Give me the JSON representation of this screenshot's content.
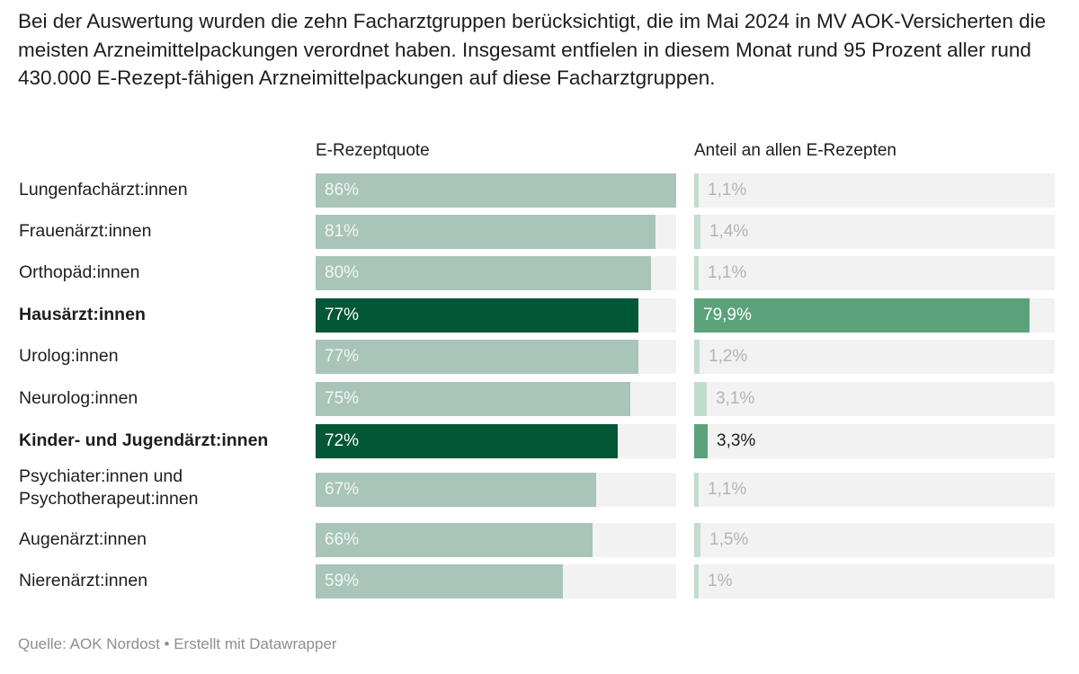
{
  "intro": "Bei der Auswertung wurden die zehn Facharztgruppen berücksichtigt, die im Mai 2024 in MV AOK-Versicherten die meisten Arzneimittelpackungen verordnet haben. Insgesamt entfielen in diesem Monat rund 95 Prozent aller rund 430.000 E-Rezept-fähigen Arzneimittelpackungen auf diese Facharztgruppen.",
  "footer": "Quelle: AOK Nordost • Erstellt mit Datawrapper",
  "colors": {
    "quote_default": "#a9c4b9",
    "quote_highlight": "#025736",
    "share_default": "#c2dccf",
    "share_highlight": "#5ba27b",
    "track": "#f2f2f2",
    "label_light": "#ffffff",
    "label_muted": "#b3b3b3",
    "label_dark": "#1d1d1d"
  },
  "chart_data": {
    "type": "bar",
    "title": "",
    "columns": [
      {
        "key": "quote",
        "header": "E-Rezeptquote",
        "unit": "%",
        "xlim": [
          0,
          86
        ]
      },
      {
        "key": "share",
        "header": "Anteil an allen E-Rezepten",
        "unit": "%",
        "xlim": [
          0,
          86
        ]
      }
    ],
    "categories": [
      "Lungenfachärzt:innen",
      "Frauenärzt:innen",
      "Orthopäd:innen",
      "Hausärzt:innen",
      "Urolog:innen",
      "Neurolog:innen",
      "Kinder- und Jugendärzt:innen",
      "Psychiater:innen und Psychotherapeut:innen",
      "Augenärzt:innen",
      "Nierenärzt:innen"
    ],
    "highlighted": [
      false,
      false,
      false,
      true,
      false,
      false,
      true,
      false,
      false,
      false
    ],
    "series": [
      {
        "name": "E-Rezeptquote",
        "values": [
          86,
          81,
          80,
          77,
          77,
          75,
          72,
          67,
          66,
          59
        ],
        "labels": [
          "86%",
          "81%",
          "80%",
          "77%",
          "77%",
          "75%",
          "72%",
          "67%",
          "66%",
          "59%"
        ]
      },
      {
        "name": "Anteil an allen E-Rezepten",
        "values": [
          1.1,
          1.4,
          1.1,
          79.9,
          1.2,
          3.1,
          3.3,
          1.1,
          1.5,
          1.0
        ],
        "labels": [
          "1,1%",
          "1,4%",
          "1,1%",
          "79,9%",
          "1,2%",
          "3,1%",
          "3,3%",
          "1,1%",
          "1,5%",
          "1%"
        ]
      }
    ],
    "grid": false,
    "legend": "none"
  }
}
